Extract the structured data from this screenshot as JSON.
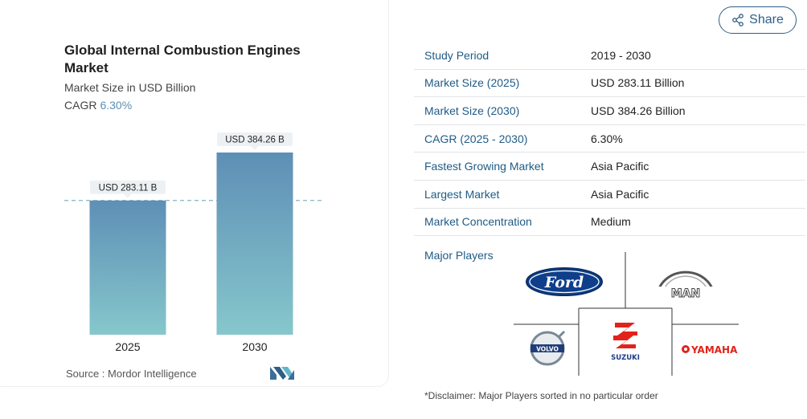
{
  "chart": {
    "title": "Global Internal Combustion Engines Market",
    "subtitle": "Market Size in USD Billion",
    "cagr_label": "CAGR",
    "cagr_value": "6.30%",
    "source": "Source : Mordor Intelligence"
  },
  "chart_data": {
    "type": "bar",
    "categories": [
      "2025",
      "2030"
    ],
    "values": [
      283.11,
      384.26
    ],
    "data_labels": [
      "USD 283.11 B",
      "USD 384.26 B"
    ],
    "title": "Global Internal Combustion Engines Market",
    "xlabel": "",
    "ylabel": "",
    "grid": false,
    "colors": {
      "bar_top": "#5e8fb6",
      "bar_bottom": "#86c7cc",
      "reference_line": "#86b4c2"
    }
  },
  "share": {
    "label": "Share"
  },
  "table": [
    {
      "key": "Study Period",
      "value": "2019 - 2030"
    },
    {
      "key": "Market Size (2025)",
      "value": "USD 283.11 Billion"
    },
    {
      "key": "Market Size (2030)",
      "value": "USD 384.26 Billion"
    },
    {
      "key": "CAGR (2025 - 2030)",
      "value": "6.30%"
    },
    {
      "key": "Fastest Growing Market",
      "value": "Asia Pacific"
    },
    {
      "key": "Largest Market",
      "value": "Asia Pacific"
    },
    {
      "key": "Market Concentration",
      "value": "Medium"
    }
  ],
  "players": {
    "label": "Major Players",
    "logos": {
      "ford": "Ford",
      "man": "MAN",
      "volvo": "VOLVO",
      "suzuki": "SUZUKI",
      "yamaha": "YAMAHA"
    },
    "disclaimer": "*Disclaimer: Major Players sorted in no particular order"
  }
}
